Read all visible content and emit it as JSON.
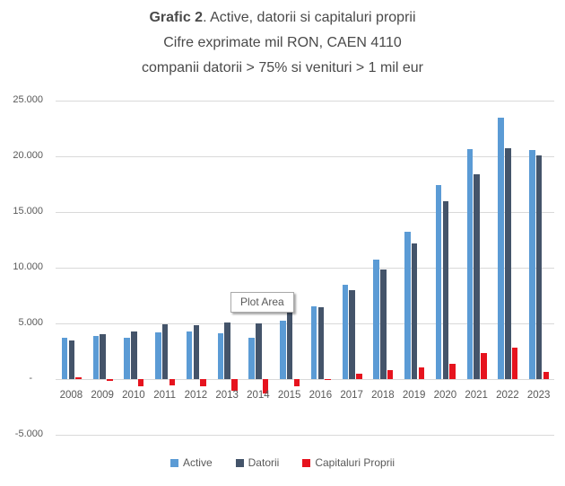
{
  "title": {
    "bold": "Grafic 2",
    "rest": ". Active, datorii si capitaluri proprii",
    "line2": "Cifre exprimate mil RON, CAEN 4110",
    "line3": "companii datorii > 75% si venituri > 1 mil eur"
  },
  "plot_area_tooltip": "Plot Area",
  "colors": {
    "active": "#5B9BD5",
    "datorii": "#44546A",
    "capitaluri_proprii": "#E6131E",
    "gridline": "#D9D9D9",
    "axis_text": "#595959",
    "title_text": "#4A4A4A"
  },
  "chart_data": {
    "type": "bar",
    "title": "Grafic 2. Active, datorii si capitaluri proprii — Cifre exprimate mil RON, CAEN 4110 — companii datorii > 75% si venituri > 1 mil eur",
    "categories": [
      "2008",
      "2009",
      "2010",
      "2011",
      "2012",
      "2013",
      "2014",
      "2015",
      "2016",
      "2017",
      "2018",
      "2019",
      "2020",
      "2021",
      "2022",
      "2023"
    ],
    "series": [
      {
        "name": "Active",
        "color": "#5B9BD5",
        "values": [
          3700,
          3900,
          3750,
          4200,
          4300,
          4100,
          3750,
          5250,
          6500,
          8450,
          10700,
          13250,
          17400,
          20650,
          23450,
          20600
        ]
      },
      {
        "name": "Datorii",
        "color": "#44546A",
        "values": [
          3500,
          4000,
          4300,
          4900,
          4850,
          5050,
          5000,
          6200,
          6450,
          7950,
          9850,
          12200,
          15950,
          18350,
          20700,
          20050
        ]
      },
      {
        "name": "Capitaluri Proprii",
        "color": "#E6131E",
        "values": [
          200,
          -130,
          -650,
          -550,
          -620,
          -1050,
          -1300,
          -670,
          -120,
          450,
          800,
          1050,
          1400,
          2350,
          2800,
          650
        ]
      }
    ],
    "xlabel": "",
    "ylabel": "",
    "ylim": [
      -5000,
      25000
    ],
    "yticks": [
      25000,
      20000,
      15000,
      10000,
      5000,
      0,
      -5000
    ],
    "ytick_labels": [
      "25.000",
      "20.000",
      "15.000",
      "10.000",
      "5.000",
      "-",
      "-5.000"
    ],
    "grid": true,
    "legend_position": "bottom"
  }
}
